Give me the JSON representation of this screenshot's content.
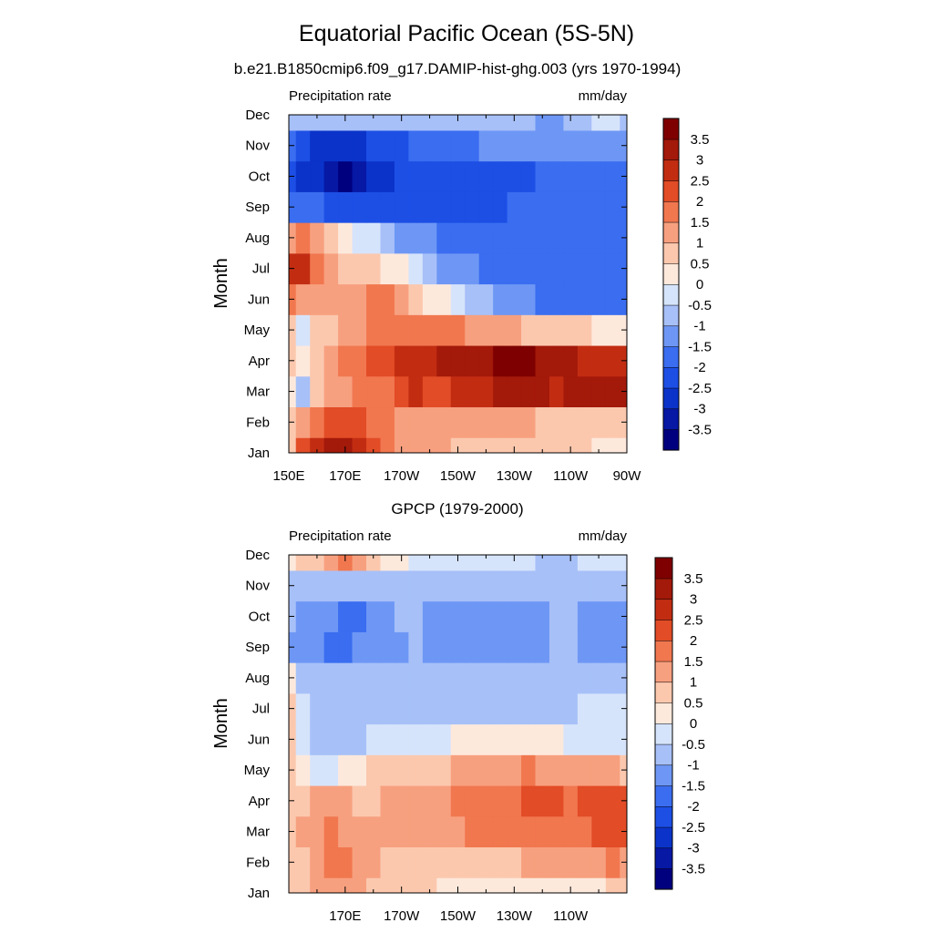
{
  "figure": {
    "title": "Equatorial Pacific Ocean (5S-5N)"
  },
  "panels": [
    {
      "subtitle": "b.e21.B1850cmip6.f09_g17.DAMIP-hist-ghg.003 (yrs 1970-1994)",
      "left_string": "Precipitation rate",
      "right_string": "mm/day",
      "ylabel": "Month",
      "xtick_labels": [
        "150E",
        "170E",
        "170W",
        "150W",
        "130W",
        "110W",
        "90W"
      ],
      "ytick_labels": [
        "Jan",
        "Feb",
        "Mar",
        "Apr",
        "May",
        "Jun",
        "Jul",
        "Aug",
        "Sep",
        "Oct",
        "Nov",
        "Dec"
      ]
    },
    {
      "subtitle": "GPCP (1979-2000)",
      "left_string": "Precipitation rate",
      "right_string": "mm/day",
      "ylabel": "Month",
      "xtick_labels": [
        "",
        "170E",
        "170W",
        "150W",
        "130W",
        "110W",
        ""
      ],
      "ytick_labels": [
        "Jan",
        "Feb",
        "Mar",
        "Apr",
        "May",
        "Jun",
        "Jul",
        "Aug",
        "Sep",
        "Oct",
        "Nov",
        "Dec"
      ]
    }
  ],
  "colorbar": {
    "levels": [
      -3.5,
      -3,
      -2.5,
      -2,
      -1.5,
      -1,
      -0.5,
      0,
      0.5,
      1,
      1.5,
      2,
      2.5,
      3,
      3.5
    ],
    "labels": [
      "-3.5",
      "-3",
      "-2.5",
      "-2",
      "-1.5",
      "-1",
      "-0.5",
      "0",
      "0.5",
      "1",
      "1.5",
      "2",
      "2.5",
      "3",
      "3.5"
    ],
    "colors": [
      "#00007f",
      "#0618a4",
      "#0b33c9",
      "#1d4fe5",
      "#3a6df0",
      "#6e97f5",
      "#a7c0f8",
      "#d6e4fb",
      "#fde9dc",
      "#fbc8ae",
      "#f7a07f",
      "#f1774f",
      "#e24c26",
      "#c22d12",
      "#a3190a",
      "#7f0000"
    ]
  },
  "chart_data": [
    {
      "type": "heatmap",
      "title": "b.e21.B1850cmip6.f09_g17.DAMIP-hist-ghg.003 (yrs 1970-1994)",
      "ylabel": "Month",
      "units": "mm/day",
      "x": [
        150,
        155,
        160,
        165,
        170,
        175,
        180,
        185,
        190,
        195,
        200,
        205,
        210,
        215,
        220,
        225,
        230,
        235,
        240,
        245,
        250,
        255,
        260,
        265,
        270
      ],
      "y": [
        "Jan",
        "Feb",
        "Mar",
        "Apr",
        "May",
        "Jun",
        "Jul",
        "Aug",
        "Sep",
        "Oct",
        "Nov",
        "Dec"
      ],
      "xlim": [
        150,
        270
      ],
      "values": [
        [
          0.8,
          2.2,
          2.6,
          3.2,
          3.4,
          2.8,
          2.3,
          1.6,
          1.3,
          1.1,
          1.0,
          1.0,
          0.9,
          0.9,
          0.8,
          0.7,
          0.7,
          0.6,
          0.6,
          0.5,
          0.5,
          0.5,
          0.4,
          0.4,
          0.4
        ],
        [
          0.6,
          1.1,
          1.6,
          2.1,
          2.3,
          2.0,
          1.8,
          1.5,
          1.4,
          1.3,
          1.2,
          1.3,
          1.4,
          1.3,
          1.2,
          1.1,
          1.0,
          1.0,
          0.9,
          0.8,
          0.8,
          0.7,
          0.7,
          0.6,
          0.6
        ],
        [
          0.3,
          -0.6,
          0.6,
          1.1,
          1.4,
          1.6,
          1.5,
          1.9,
          2.2,
          2.5,
          2.3,
          2.4,
          2.6,
          2.8,
          2.9,
          3.0,
          3.1,
          3.0,
          3.1,
          2.9,
          3.2,
          3.1,
          3.1,
          3.0,
          3.0
        ],
        [
          0.6,
          0.2,
          0.9,
          1.2,
          1.5,
          1.7,
          2.2,
          2.3,
          2.5,
          2.6,
          2.8,
          3.0,
          3.1,
          3.2,
          3.4,
          3.5,
          3.6,
          3.5,
          3.3,
          3.1,
          3.0,
          2.9,
          2.8,
          2.7,
          2.6
        ],
        [
          0.7,
          -0.3,
          0.6,
          0.9,
          1.2,
          1.3,
          1.6,
          1.7,
          1.8,
          1.8,
          1.7,
          1.6,
          1.5,
          1.4,
          1.3,
          1.1,
          1.0,
          0.9,
          0.8,
          0.7,
          0.6,
          0.5,
          0.4,
          0.3,
          0.3
        ],
        [
          1.6,
          1.4,
          1.1,
          1.0,
          1.1,
          1.4,
          1.7,
          1.5,
          1.2,
          0.8,
          0.4,
          0.0,
          -0.3,
          -0.6,
          -0.9,
          -1.1,
          -1.3,
          -1.5,
          -1.6,
          -1.7,
          -1.8,
          -1.9,
          -1.9,
          -1.8,
          -1.8
        ],
        [
          2.9,
          2.6,
          1.6,
          1.0,
          0.6,
          0.6,
          0.7,
          0.4,
          0.0,
          -0.4,
          -0.8,
          -1.1,
          -1.3,
          -1.5,
          -1.6,
          -1.7,
          -1.8,
          -1.9,
          -1.9,
          -2.0,
          -2.0,
          -2.0,
          -2.0,
          -2.0,
          -2.0
        ],
        [
          1.2,
          1.5,
          1.0,
          0.7,
          0.3,
          -0.1,
          -0.5,
          -0.9,
          -1.2,
          -1.4,
          -1.5,
          -1.6,
          -1.7,
          -1.8,
          -1.9,
          -2.0,
          -2.0,
          -2.0,
          -2.0,
          -2.0,
          -2.0,
          -2.0,
          -2.0,
          -2.0,
          -1.8
        ],
        [
          -1.7,
          -1.9,
          -2.0,
          -2.1,
          -2.1,
          -2.1,
          -2.2,
          -2.2,
          -2.2,
          -2.2,
          -2.1,
          -2.1,
          -2.1,
          -2.1,
          -2.1,
          -2.1,
          -2.0,
          -2.0,
          -2.0,
          -2.0,
          -2.0,
          -2.0,
          -2.0,
          -1.9,
          -1.6
        ],
        [
          -2.4,
          -2.6,
          -3.0,
          -3.4,
          -3.6,
          -3.4,
          -3.0,
          -2.6,
          -2.5,
          -2.3,
          -2.2,
          -2.2,
          -2.2,
          -2.2,
          -2.2,
          -2.1,
          -2.1,
          -2.1,
          -2.0,
          -2.0,
          -2.0,
          -2.0,
          -2.0,
          -2.0,
          -1.8
        ],
        [
          -2.0,
          -2.4,
          -2.6,
          -2.8,
          -2.8,
          -2.6,
          -2.5,
          -2.4,
          -2.2,
          -2.0,
          -1.8,
          -1.7,
          -1.6,
          -1.6,
          -1.5,
          -1.5,
          -1.5,
          -1.5,
          -1.5,
          -1.5,
          -1.4,
          -1.2,
          -1.1,
          -1.2,
          -1.3
        ],
        [
          -0.8,
          -0.7,
          -0.9,
          -1.0,
          -1.0,
          -0.9,
          -0.8,
          -0.8,
          -0.9,
          -0.9,
          -0.9,
          -0.9,
          -1.0,
          -1.0,
          -1.0,
          -1.0,
          -1.0,
          -1.0,
          -1.1,
          -1.1,
          -0.9,
          -0.6,
          -0.4,
          -0.3,
          -0.6
        ]
      ]
    },
    {
      "type": "heatmap",
      "title": "GPCP (1979-2000)",
      "ylabel": "Month",
      "units": "mm/day",
      "x": [
        150,
        155,
        160,
        165,
        170,
        175,
        180,
        185,
        190,
        195,
        200,
        205,
        210,
        215,
        220,
        225,
        230,
        235,
        240,
        245,
        250,
        255,
        260,
        265,
        270
      ],
      "y": [
        "Jan",
        "Feb",
        "Mar",
        "Apr",
        "May",
        "Jun",
        "Jul",
        "Aug",
        "Sep",
        "Oct",
        "Nov",
        "Dec"
      ],
      "xlim": [
        150,
        270
      ],
      "values": [
        [
          0.7,
          0.8,
          1.0,
          1.2,
          1.3,
          1.1,
          0.8,
          0.7,
          0.6,
          0.5,
          0.5,
          0.4,
          0.4,
          0.4,
          0.3,
          0.3,
          0.3,
          0.2,
          0.1,
          0.1,
          0.2,
          0.3,
          0.4,
          0.5,
          0.5
        ],
        [
          0.8,
          0.9,
          1.4,
          1.8,
          1.6,
          1.2,
          1.0,
          0.9,
          0.8,
          0.8,
          0.7,
          0.7,
          0.7,
          0.8,
          0.8,
          0.9,
          0.9,
          1.0,
          1.0,
          1.1,
          1.1,
          1.2,
          1.4,
          1.5,
          1.4
        ],
        [
          0.9,
          1.0,
          1.3,
          1.6,
          1.4,
          1.1,
          1.0,
          1.0,
          1.0,
          1.1,
          1.2,
          1.3,
          1.4,
          1.5,
          1.6,
          1.6,
          1.7,
          1.8,
          1.7,
          1.6,
          1.6,
          1.8,
          2.0,
          2.1,
          2.0
        ],
        [
          0.7,
          0.8,
          1.1,
          1.2,
          1.1,
          0.9,
          0.9,
          1.0,
          1.1,
          1.2,
          1.3,
          1.4,
          1.6,
          1.7,
          1.8,
          1.8,
          1.9,
          2.1,
          2.2,
          2.1,
          1.9,
          2.0,
          2.2,
          2.3,
          2.1
        ],
        [
          0.5,
          0.3,
          -0.3,
          -0.2,
          0.1,
          0.3,
          0.5,
          0.6,
          0.6,
          0.7,
          0.8,
          0.9,
          1.0,
          1.1,
          1.2,
          1.3,
          1.4,
          1.5,
          1.4,
          1.3,
          1.2,
          1.2,
          1.1,
          1.0,
          0.8
        ],
        [
          0.6,
          -0.1,
          -0.7,
          -0.9,
          -0.8,
          -0.6,
          -0.4,
          -0.5,
          -0.4,
          -0.3,
          -0.2,
          -0.1,
          0.0,
          0.1,
          0.1,
          0.1,
          0.1,
          0.1,
          0.0,
          0.0,
          -0.1,
          -0.1,
          -0.1,
          -0.1,
          -0.1
        ],
        [
          0.5,
          -0.3,
          -0.7,
          -0.8,
          -0.8,
          -0.8,
          -0.7,
          -0.8,
          -0.8,
          -0.8,
          -0.8,
          -0.8,
          -0.7,
          -0.7,
          -0.7,
          -0.7,
          -0.7,
          -0.7,
          -0.7,
          -0.6,
          -0.6,
          -0.5,
          -0.4,
          -0.5,
          -0.5
        ],
        [
          0.3,
          -0.6,
          -0.8,
          -0.9,
          -0.9,
          -0.9,
          -0.9,
          -0.9,
          -0.9,
          -0.9,
          -0.9,
          -0.9,
          -0.8,
          -0.8,
          -0.8,
          -0.8,
          -0.8,
          -0.8,
          -0.9,
          -0.9,
          -0.8,
          -0.8,
          -0.8,
          -0.9,
          -0.9
        ],
        [
          -1.4,
          -1.2,
          -1.3,
          -1.6,
          -1.7,
          -1.3,
          -1.2,
          -1.1,
          -1.1,
          -1.0,
          -1.1,
          -1.3,
          -1.3,
          -1.4,
          -1.4,
          -1.4,
          -1.3,
          -1.3,
          -1.2,
          -1.0,
          -1.0,
          -1.1,
          -1.3,
          -1.2,
          -1.1
        ],
        [
          -1.0,
          -1.1,
          -1.2,
          -1.4,
          -1.6,
          -1.6,
          -1.3,
          -1.1,
          -1.0,
          -1.0,
          -1.1,
          -1.3,
          -1.4,
          -1.4,
          -1.4,
          -1.3,
          -1.3,
          -1.2,
          -1.1,
          -1.0,
          -1.0,
          -1.2,
          -1.3,
          -1.3,
          -1.2
        ],
        [
          -0.6,
          -0.6,
          -0.7,
          -0.8,
          -0.9,
          -0.8,
          -0.7,
          -0.6,
          -0.6,
          -0.6,
          -0.7,
          -0.8,
          -0.8,
          -0.9,
          -0.9,
          -0.8,
          -0.8,
          -0.8,
          -0.7,
          -0.7,
          -0.6,
          -0.6,
          -0.7,
          -0.7,
          -0.6
        ],
        [
          0.1,
          0.5,
          0.8,
          1.2,
          1.6,
          1.3,
          0.6,
          0.3,
          0.1,
          -0.1,
          -0.2,
          -0.3,
          -0.4,
          -0.4,
          -0.4,
          -0.4,
          -0.5,
          -0.5,
          -0.6,
          -0.6,
          -0.6,
          -0.5,
          -0.3,
          -0.4,
          -0.5
        ]
      ]
    }
  ]
}
